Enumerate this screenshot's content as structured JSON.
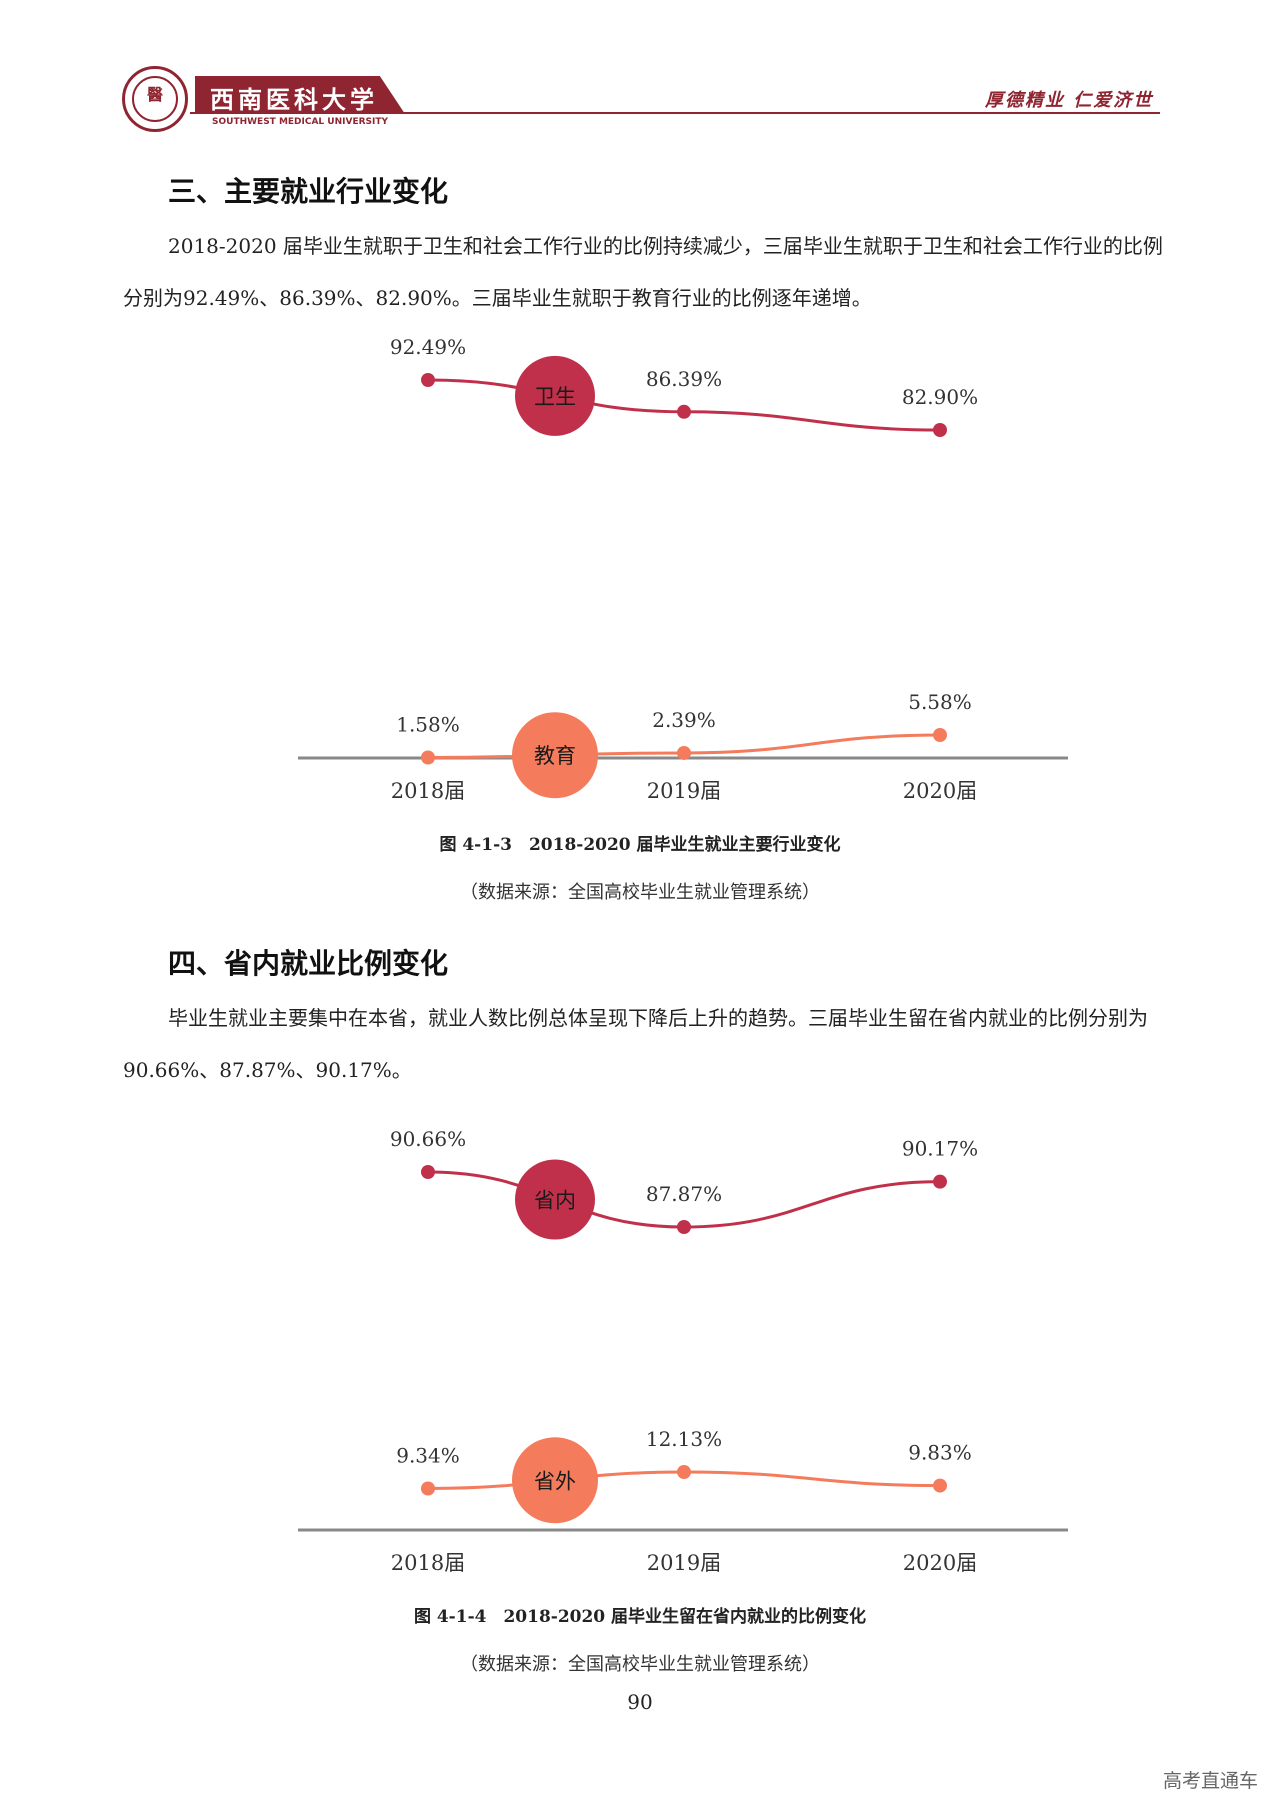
{
  "header": {
    "university_name": "西南医科大学",
    "university_name_en": "SOUTHWEST MEDICAL UNIVERSITY",
    "motto": "厚德精业  仁爱济世"
  },
  "section3": {
    "heading": "三、主要就业行业变化",
    "paragraph": "2018-2020 届毕业生就职于卫生和社会工作行业的比例持续减少，三届毕业生就职于卫生和社会工作行业的比例分别为92.49%、86.39%、82.90%。三届毕业生就职于教育行业的比例逐年递增。",
    "caption": "图 4-1-3　2018-2020 届毕业生就业主要行业变化",
    "source": "（数据来源：全国高校毕业生就业管理系统）"
  },
  "section4": {
    "heading": "四、省内就业比例变化",
    "paragraph": "毕业生就业主要集中在本省，就业人数比例总体呈现下降后上升的趋势。三届毕业生留在省内就业的比例分别为90.66%、87.87%、90.17%。",
    "caption": "图 4-1-4　2018-2020 届毕业生留在省内就业的比例变化",
    "source": "（数据来源：全国高校毕业生就业管理系统）"
  },
  "page_number": "90",
  "watermark": "高考直通车",
  "chart_data": [
    {
      "type": "line",
      "categories": [
        "2018届",
        "2019届",
        "2020届"
      ],
      "series": [
        {
          "name": "卫生",
          "values": [
            92.49,
            86.39,
            82.9
          ],
          "labels": [
            "92.49%",
            "86.39%",
            "82.90%"
          ],
          "color": "#c0304a"
        },
        {
          "name": "教育",
          "values": [
            1.58,
            2.39,
            5.58
          ],
          "labels": [
            "1.58%",
            "2.39%",
            "5.58%"
          ],
          "color": "#f47b5b"
        }
      ]
    },
    {
      "type": "line",
      "categories": [
        "2018届",
        "2019届",
        "2020届"
      ],
      "series": [
        {
          "name": "省内",
          "values": [
            90.66,
            87.87,
            90.17
          ],
          "labels": [
            "90.66%",
            "87.87%",
            "90.17%"
          ],
          "color": "#c0304a"
        },
        {
          "name": "省外",
          "values": [
            9.34,
            12.13,
            9.83
          ],
          "labels": [
            "9.34%",
            "12.13%",
            "9.83%"
          ],
          "color": "#f47b5b"
        }
      ]
    }
  ]
}
